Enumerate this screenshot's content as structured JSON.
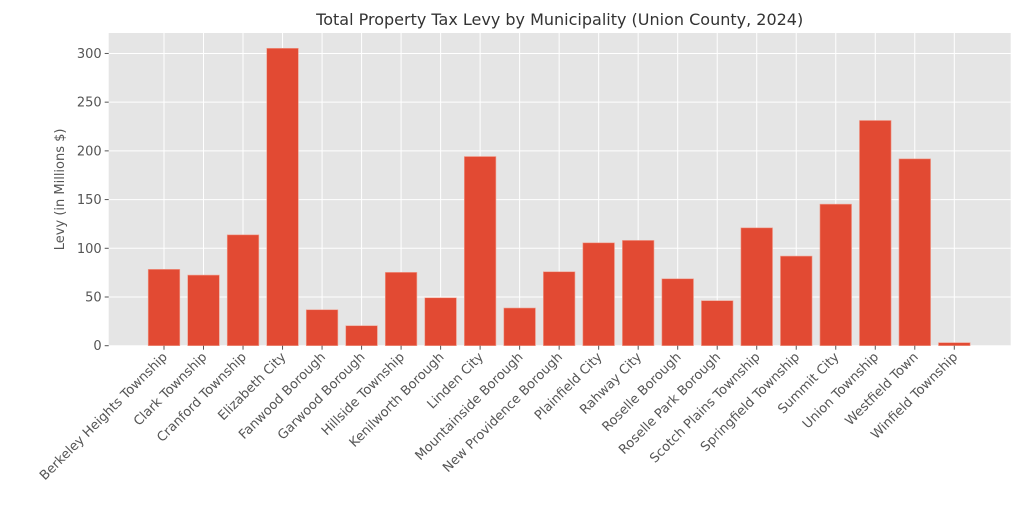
{
  "chart_data": {
    "type": "bar",
    "title": "Total Property Tax Levy by Municipality (Union County, 2024)",
    "xlabel": "",
    "ylabel": "Levy (in Millions $)",
    "ylim": [
      0,
      321
    ],
    "yticks": [
      0,
      50,
      100,
      150,
      200,
      250,
      300
    ],
    "grid": true,
    "legend": null,
    "bar_color": "#E24A33",
    "background_color": "#E5E5E5",
    "grid_color": "#FFFFFF",
    "text_color": "#555555",
    "categories": [
      "Berkeley Heights Township",
      "Clark Township",
      "Cranford Township",
      "Elizabeth City",
      "Fanwood Borough",
      "Garwood Borough",
      "Hillside Township",
      "Kenilworth Borough",
      "Linden City",
      "Mountainside Borough",
      "New Providence Borough",
      "Plainfield City",
      "Rahway City",
      "Roselle Borough",
      "Roselle Park Borough",
      "Scotch Plains Township",
      "Springfield Township",
      "Summit City",
      "Union Township",
      "Westfield Town",
      "Winfield Township"
    ],
    "values": [
      78.4,
      72.5,
      113.8,
      305.3,
      36.9,
      20.5,
      75.3,
      49.2,
      194.2,
      38.7,
      75.9,
      105.6,
      108.1,
      68.7,
      46.2,
      121.0,
      92.0,
      145.3,
      231.2,
      191.8,
      3.1
    ]
  }
}
